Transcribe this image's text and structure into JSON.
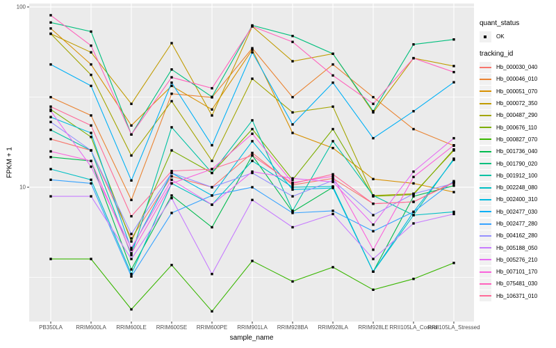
{
  "figure": {
    "panel_bg": "#ebebeb",
    "grid_color": "#ffffff",
    "axis_text_color": "#4d4d4d",
    "point_color": "#000000"
  },
  "y_axis": {
    "title": "FPKM + 1",
    "ticks": [
      "100",
      "10"
    ]
  },
  "x_axis": {
    "title": "sample_name"
  },
  "legend": {
    "quant_title": "quant_status",
    "quant_ok_label": "OK",
    "tracking_title": "tracking_id"
  },
  "chart_data": {
    "type": "line",
    "xlabel": "sample_name",
    "ylabel": "FPKM + 1",
    "y_scale": "log10",
    "ylim": [
      1.8,
      105
    ],
    "y_major_ticks": [
      100,
      10
    ],
    "y_minor_ticks": [
      31.62,
      3.162
    ],
    "grid": true,
    "legend_position": "right",
    "point_marker": "black-square",
    "categories": [
      "PB350LA",
      "RRIM600LA",
      "RRIM600LE",
      "RRIM600SE",
      "RRIM600PE",
      "RRIM901LA",
      "RRIM928BA",
      "RRIM928LA",
      "RRIM928LE",
      "RRII105LA_Control",
      "RRII105LA_Stressed"
    ],
    "series": [
      {
        "name": "Hb_000030_040",
        "color": "#F8766D",
        "values": [
          18.5,
          16,
          5.2,
          11.5,
          10,
          15.5,
          10.3,
          11.2,
          8.1,
          8.3,
          10.7
        ]
      },
      {
        "name": "Hb_000046_010",
        "color": "#EA8331",
        "values": [
          31.6,
          25,
          8.5,
          33,
          31.5,
          59,
          31.6,
          48,
          31.6,
          21,
          17
        ]
      },
      {
        "name": "Hb_000051_070",
        "color": "#D89000",
        "values": [
          76,
          48,
          22,
          36.5,
          27,
          58,
          20,
          16.5,
          11.1,
          10.5,
          9.4
        ]
      },
      {
        "name": "Hb_000072_350",
        "color": "#C09B00",
        "values": [
          71,
          56,
          29,
          63,
          25,
          78,
          50,
          55,
          26,
          52,
          47
        ]
      },
      {
        "name": "Hb_000487_290",
        "color": "#A3A500",
        "values": [
          71,
          42,
          15,
          30,
          14,
          40,
          26,
          28,
          9.0,
          9.2,
          16
        ]
      },
      {
        "name": "Hb_000676_110",
        "color": "#7CAE00",
        "values": [
          27,
          19,
          5.0,
          16,
          12,
          21,
          11,
          21,
          8.9,
          9.1,
          16.2
        ]
      },
      {
        "name": "Hb_000827_070",
        "color": "#39B600",
        "values": [
          4.0,
          4.0,
          2.1,
          3.7,
          2.05,
          3.9,
          3.0,
          3.6,
          2.7,
          3.1,
          3.8
        ]
      },
      {
        "name": "Hb_001736_040",
        "color": "#00BB4E",
        "values": [
          14.7,
          14,
          3.5,
          9,
          6,
          15,
          7.3,
          10,
          3.4,
          8.9,
          10.2
        ]
      },
      {
        "name": "Hb_001790_020",
        "color": "#00BF7D",
        "values": [
          82,
          73,
          19.6,
          45,
          31.7,
          79,
          69,
          55,
          26.4,
          62,
          66
        ]
      },
      {
        "name": "Hb_001912_100",
        "color": "#00C1A3",
        "values": [
          20.8,
          16,
          4.2,
          21.5,
          12,
          23.5,
          7.4,
          18,
          9.0,
          7.0,
          14.4
        ]
      },
      {
        "name": "Hb_002248_080",
        "color": "#00BFC4",
        "values": [
          12.6,
          11,
          3.3,
          10.5,
          8,
          14,
          10,
          10.1,
          3.4,
          7.0,
          7.3
        ]
      },
      {
        "name": "Hb_002400_310",
        "color": "#00BAE0",
        "values": [
          24.5,
          20,
          4.5,
          12,
          9,
          18,
          9.7,
          9.9,
          3.4,
          7.3,
          14.2
        ]
      },
      {
        "name": "Hb_002477_030",
        "color": "#00B0F6",
        "values": [
          48,
          36.5,
          10.9,
          38,
          17.1,
          56,
          22.3,
          38,
          18.7,
          26.4,
          38.2
        ]
      },
      {
        "name": "Hb_002477_280",
        "color": "#35A2FF",
        "values": [
          11,
          10.5,
          3.2,
          7.2,
          9,
          10,
          7.2,
          7.4,
          5.7,
          7.3,
          10.8
        ]
      },
      {
        "name": "Hb_004162_280",
        "color": "#9590FF",
        "values": [
          23,
          16,
          5.5,
          12,
          10,
          12,
          8.9,
          10.9,
          7.0,
          9.2,
          10.5
        ]
      },
      {
        "name": "Hb_005188_050",
        "color": "#C77CFF",
        "values": [
          8.9,
          8.9,
          4.0,
          8.7,
          3.3,
          8.5,
          6.0,
          7.1,
          4.0,
          6.3,
          7.1
        ]
      },
      {
        "name": "Hb_005276_210",
        "color": "#E76BF3",
        "values": [
          26.5,
          13,
          4.6,
          11,
          8,
          12.2,
          11.2,
          10.7,
          6.2,
          12.2,
          18.7
        ]
      },
      {
        "name": "Hb_007101_170",
        "color": "#FA62DB",
        "values": [
          15.8,
          14,
          4.3,
          10.5,
          12.6,
          19.8,
          10.6,
          11.5,
          4.5,
          11.4,
          17.1
        ]
      },
      {
        "name": "Hb_075481_030",
        "color": "#FF62BC",
        "values": [
          90,
          61,
          19.6,
          40.7,
          35.4,
          78,
          64,
          41.7,
          29,
          52,
          43.5
        ]
      },
      {
        "name": "Hb_106371_010",
        "color": "#FF6A98",
        "values": [
          28,
          22,
          6.9,
          12.3,
          12.6,
          15,
          10.5,
          11.8,
          8.1,
          8.3,
          10.6
        ]
      }
    ]
  }
}
